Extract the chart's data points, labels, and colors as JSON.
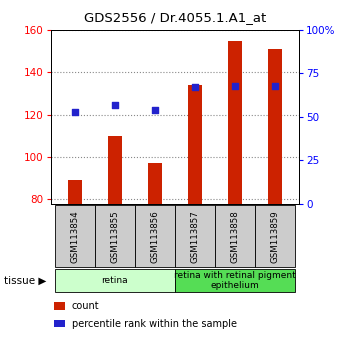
{
  "title": "GDS2556 / Dr.4055.1.A1_at",
  "samples": [
    "GSM113854",
    "GSM113855",
    "GSM113856",
    "GSM113857",
    "GSM113858",
    "GSM113859"
  ],
  "counts": [
    89,
    110,
    97,
    134,
    155,
    151
  ],
  "percentile_ranks": [
    53,
    57,
    54,
    67,
    68,
    68
  ],
  "ylim_left": [
    78,
    160
  ],
  "ylim_right": [
    0,
    100
  ],
  "yticks_left": [
    80,
    100,
    120,
    140,
    160
  ],
  "yticks_right": [
    0,
    25,
    50,
    75,
    100
  ],
  "ytick_right_labels": [
    "0",
    "25",
    "50",
    "75",
    "100%"
  ],
  "bar_color": "#cc2200",
  "dot_color": "#2222cc",
  "bar_bottom": 78,
  "tissue_groups": [
    {
      "label": "retina",
      "start": 0,
      "end": 3,
      "color": "#ccffcc"
    },
    {
      "label": "retina with retinal pigment\nepithelium",
      "start": 3,
      "end": 6,
      "color": "#55dd55"
    }
  ],
  "legend_items": [
    {
      "label": "count",
      "color": "#cc2200"
    },
    {
      "label": "percentile rank within the sample",
      "color": "#2222cc"
    }
  ],
  "grid_color": "#888888",
  "background_color": "#ffffff",
  "sample_box_color": "#cccccc",
  "bar_width": 0.35
}
